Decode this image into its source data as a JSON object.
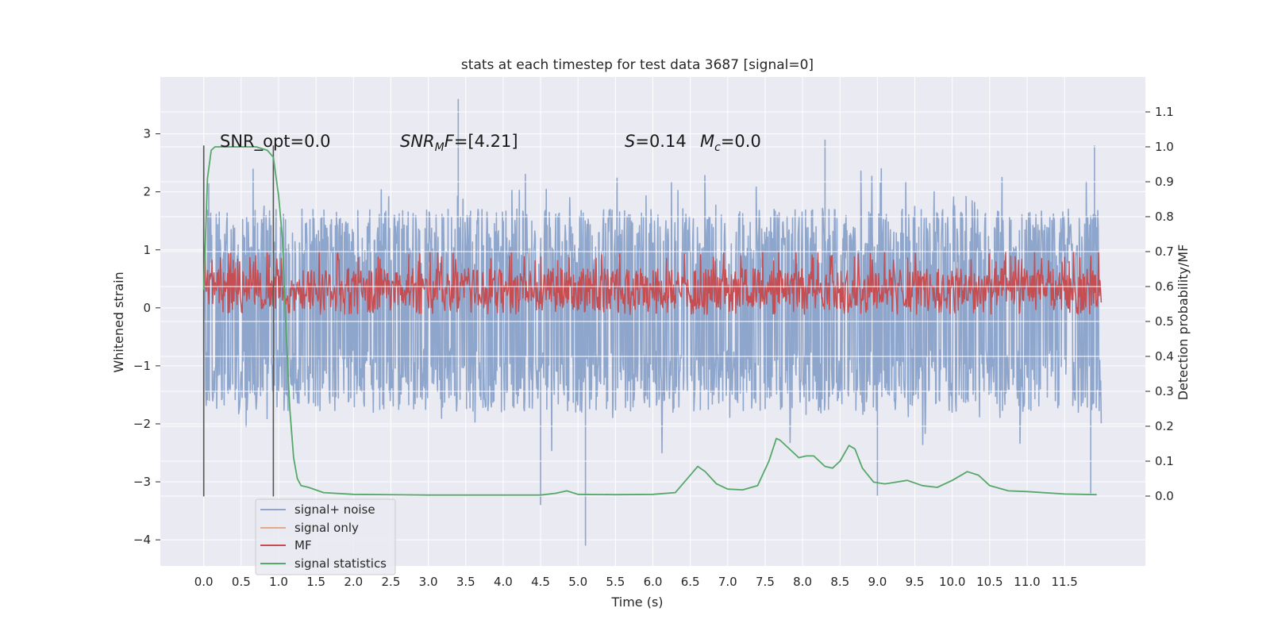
{
  "chart_data": {
    "type": "line",
    "title": "stats at each timestep for test data 3687 [signal=0]",
    "xlabel": "Time (s)",
    "ylabel": "Whitened strain",
    "ylabel_right": "Detection probability/MF",
    "xlim": [
      -0.58,
      12.58
    ],
    "ylim": [
      -4.45,
      3.98
    ],
    "ylim_right": [
      -0.2,
      1.2
    ],
    "x_ticks": [
      "0.0",
      "0.5",
      "1.0",
      "1.5",
      "2.0",
      "2.5",
      "3.0",
      "3.5",
      "4.0",
      "4.5",
      "5.0",
      "5.5",
      "6.0",
      "6.5",
      "7.0",
      "7.5",
      "8.0",
      "8.5",
      "9.0",
      "9.5",
      "10.0",
      "10.5",
      "11.0",
      "11.5"
    ],
    "y_ticks": [
      "3",
      "2",
      "1",
      "0",
      "−1",
      "−2",
      "−3",
      "−4"
    ],
    "y_ticks_right": [
      "1.1",
      "1.0",
      "0.9",
      "0.8",
      "0.7",
      "0.6",
      "0.5",
      "0.4",
      "0.3",
      "0.2",
      "0.1",
      "0.0"
    ],
    "grid": true,
    "legend_position": "lower-left",
    "annotations": {
      "snr_opt": "SNR_opt=0.0",
      "snr_mf": "SNR",
      "snr_mf_sub": "M",
      "snr_mf_f": "F",
      "snr_mf_val": "=[4.21]",
      "s_label": "S",
      "s_val": "=0.14",
      "mc_label": "M",
      "mc_sub": "c",
      "mc_val": "=0.0"
    },
    "vlines": [
      0.0,
      0.93
    ],
    "series": [
      {
        "name": "signal+ noise",
        "color": "#8fa6cc",
        "x_range": [
          0.0,
          11.99
        ],
        "typical_band": [
          -1.5,
          1.5
        ],
        "peaks": [
          {
            "x": 3.4,
            "y": 3.6
          },
          {
            "x": 8.3,
            "y": 2.9
          },
          {
            "x": 11.9,
            "y": 2.8
          },
          {
            "x": 4.5,
            "y": -3.4
          },
          {
            "x": 5.1,
            "y": -4.1
          },
          {
            "x": 9.0,
            "y": -3.25
          },
          {
            "x": 11.85,
            "y": -3.2
          }
        ]
      },
      {
        "name": "signal only",
        "color": "#e6a88c",
        "values": []
      },
      {
        "name": "MF",
        "color": "#c44e52",
        "x_range": [
          0.0,
          11.99
        ],
        "right_axis_band": [
          0.54,
          0.7
        ]
      },
      {
        "name": "signal statistics",
        "color": "#55a868",
        "axis": "right",
        "x": [
          0.0,
          0.05,
          0.1,
          0.15,
          0.2,
          0.3,
          0.5,
          0.7,
          0.85,
          0.93,
          1.0,
          1.05,
          1.1,
          1.15,
          1.2,
          1.25,
          1.3,
          1.4,
          1.6,
          2.0,
          3.0,
          4.0,
          4.5,
          4.7,
          4.85,
          5.0,
          5.5,
          6.0,
          6.3,
          6.5,
          6.6,
          6.7,
          6.85,
          7.0,
          7.2,
          7.4,
          7.55,
          7.65,
          7.7,
          7.8,
          7.95,
          8.05,
          8.15,
          8.3,
          8.4,
          8.5,
          8.62,
          8.7,
          8.8,
          8.95,
          9.1,
          9.25,
          9.4,
          9.6,
          9.8,
          10.0,
          10.2,
          10.35,
          10.5,
          10.75,
          11.0,
          11.5,
          11.93
        ],
        "values": [
          0.59,
          0.91,
          0.99,
          1.0,
          1.0,
          1.0,
          1.0,
          1.0,
          0.99,
          0.97,
          0.86,
          0.74,
          0.47,
          0.25,
          0.11,
          0.05,
          0.03,
          0.025,
          0.01,
          0.005,
          0.003,
          0.003,
          0.003,
          0.008,
          0.015,
          0.005,
          0.004,
          0.005,
          0.01,
          0.06,
          0.085,
          0.07,
          0.035,
          0.02,
          0.018,
          0.03,
          0.1,
          0.165,
          0.16,
          0.14,
          0.11,
          0.115,
          0.115,
          0.085,
          0.08,
          0.1,
          0.145,
          0.135,
          0.08,
          0.04,
          0.035,
          0.04,
          0.045,
          0.03,
          0.025,
          0.045,
          0.07,
          0.06,
          0.03,
          0.015,
          0.013,
          0.006,
          0.004
        ]
      }
    ]
  }
}
